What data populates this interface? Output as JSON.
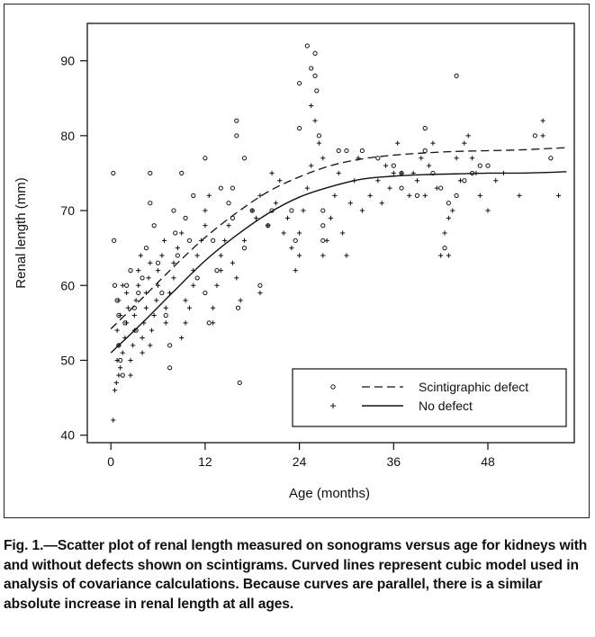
{
  "chart_data": {
    "type": "scatter",
    "title": "",
    "xlabel": "Age (months)",
    "ylabel": "Renal length (mm)",
    "xlim": [
      -3,
      59
    ],
    "ylim": [
      39,
      95
    ],
    "xticks": [
      0,
      12,
      24,
      36,
      48
    ],
    "yticks": [
      40,
      50,
      60,
      70,
      80,
      90
    ],
    "grid": false,
    "legend_position": "bottom-right",
    "series": [
      {
        "name": "Scintigraphic defect",
        "marker": "circle",
        "points": [
          [
            0.3,
            75
          ],
          [
            0.4,
            66
          ],
          [
            0.5,
            60
          ],
          [
            0.8,
            58
          ],
          [
            1,
            56
          ],
          [
            1,
            52
          ],
          [
            1.2,
            50
          ],
          [
            1.5,
            48
          ],
          [
            1.8,
            55
          ],
          [
            2,
            60
          ],
          [
            2.5,
            62
          ],
          [
            3,
            57
          ],
          [
            3.2,
            54
          ],
          [
            3.5,
            59
          ],
          [
            4,
            61
          ],
          [
            4.5,
            65
          ],
          [
            5,
            75
          ],
          [
            5,
            71
          ],
          [
            5.5,
            68
          ],
          [
            6,
            63
          ],
          [
            6.5,
            59
          ],
          [
            7,
            56
          ],
          [
            7.5,
            52
          ],
          [
            7.5,
            49
          ],
          [
            8,
            70
          ],
          [
            8.2,
            67
          ],
          [
            8.5,
            64
          ],
          [
            9,
            75
          ],
          [
            9.5,
            69
          ],
          [
            10,
            66
          ],
          [
            10.5,
            72
          ],
          [
            11,
            61
          ],
          [
            12,
            77
          ],
          [
            12,
            59
          ],
          [
            12.5,
            55
          ],
          [
            13,
            66
          ],
          [
            13.5,
            62
          ],
          [
            14,
            73
          ],
          [
            15,
            71
          ],
          [
            15.5,
            73
          ],
          [
            15.5,
            69
          ],
          [
            16,
            80
          ],
          [
            16,
            82
          ],
          [
            16.2,
            57
          ],
          [
            16.4,
            47
          ],
          [
            17,
            65
          ],
          [
            17,
            77
          ],
          [
            18,
            70
          ],
          [
            19,
            60
          ],
          [
            20,
            68
          ],
          [
            20.5,
            70
          ],
          [
            23,
            70
          ],
          [
            23.5,
            66
          ],
          [
            24,
            81
          ],
          [
            24,
            87
          ],
          [
            25,
            92
          ],
          [
            25.5,
            89
          ],
          [
            26,
            91
          ],
          [
            26,
            88
          ],
          [
            26.2,
            86
          ],
          [
            26.5,
            80
          ],
          [
            27,
            70
          ],
          [
            27,
            68
          ],
          [
            27,
            66
          ],
          [
            29,
            78
          ],
          [
            30,
            78
          ],
          [
            32,
            78
          ],
          [
            34,
            77
          ],
          [
            36,
            76
          ],
          [
            37,
            75
          ],
          [
            37,
            73
          ],
          [
            39,
            72
          ],
          [
            40,
            81
          ],
          [
            40,
            78
          ],
          [
            41,
            75
          ],
          [
            42,
            73
          ],
          [
            42.5,
            65
          ],
          [
            43,
            71
          ],
          [
            44,
            88
          ],
          [
            44,
            72
          ],
          [
            45,
            74
          ],
          [
            46,
            75
          ],
          [
            47,
            76
          ],
          [
            48,
            76
          ],
          [
            54,
            80
          ],
          [
            56,
            77
          ]
        ]
      },
      {
        "name": "No defect",
        "marker": "plus",
        "points": [
          [
            0.3,
            42
          ],
          [
            0.5,
            46
          ],
          [
            0.7,
            47
          ],
          [
            1,
            48
          ],
          [
            0.8,
            50
          ],
          [
            1,
            52
          ],
          [
            0.8,
            54
          ],
          [
            1.2,
            56
          ],
          [
            1,
            58
          ],
          [
            1.5,
            60
          ],
          [
            1.2,
            49
          ],
          [
            1.5,
            51
          ],
          [
            1.8,
            53
          ],
          [
            2,
            55
          ],
          [
            2.2,
            57
          ],
          [
            2,
            59
          ],
          [
            2.5,
            48
          ],
          [
            2.5,
            50
          ],
          [
            2.8,
            52
          ],
          [
            3,
            54
          ],
          [
            3,
            56
          ],
          [
            3.2,
            58
          ],
          [
            3.5,
            60
          ],
          [
            3.5,
            62
          ],
          [
            3.8,
            64
          ],
          [
            4,
            51
          ],
          [
            4,
            53
          ],
          [
            4.2,
            55
          ],
          [
            4.5,
            57
          ],
          [
            4.5,
            59
          ],
          [
            4.8,
            61
          ],
          [
            5,
            63
          ],
          [
            5,
            52
          ],
          [
            5.2,
            54
          ],
          [
            5.5,
            56
          ],
          [
            5.8,
            58
          ],
          [
            6,
            60
          ],
          [
            6,
            62
          ],
          [
            6.5,
            64
          ],
          [
            6.8,
            66
          ],
          [
            7,
            55
          ],
          [
            7,
            57
          ],
          [
            7.5,
            59
          ],
          [
            8,
            61
          ],
          [
            8,
            63
          ],
          [
            8.5,
            65
          ],
          [
            9,
            67
          ],
          [
            9,
            53
          ],
          [
            9.5,
            55
          ],
          [
            9.5,
            58
          ],
          [
            10,
            57
          ],
          [
            10.5,
            60
          ],
          [
            10.5,
            62
          ],
          [
            11,
            64
          ],
          [
            11.5,
            66
          ],
          [
            12,
            68
          ],
          [
            12,
            70
          ],
          [
            12.5,
            72
          ],
          [
            13,
            55
          ],
          [
            13,
            57
          ],
          [
            13.5,
            60
          ],
          [
            14,
            62
          ],
          [
            14,
            64
          ],
          [
            14.5,
            66
          ],
          [
            15,
            68
          ],
          [
            15.5,
            63
          ],
          [
            16,
            61
          ],
          [
            16.5,
            58
          ],
          [
            17,
            66
          ],
          [
            18,
            70
          ],
          [
            18.5,
            69
          ],
          [
            19,
            72
          ],
          [
            19,
            59
          ],
          [
            20,
            68
          ],
          [
            20.5,
            75
          ],
          [
            21,
            71
          ],
          [
            21.5,
            74
          ],
          [
            22,
            67
          ],
          [
            22.5,
            69
          ],
          [
            23,
            65
          ],
          [
            23.5,
            62
          ],
          [
            24,
            64
          ],
          [
            24,
            67
          ],
          [
            24.5,
            70
          ],
          [
            25,
            73
          ],
          [
            25.5,
            76
          ],
          [
            25.5,
            84
          ],
          [
            26,
            82
          ],
          [
            26.5,
            79
          ],
          [
            27,
            77
          ],
          [
            27,
            64
          ],
          [
            27.5,
            66
          ],
          [
            28,
            69
          ],
          [
            28.5,
            72
          ],
          [
            29,
            75
          ],
          [
            29.5,
            67
          ],
          [
            30,
            64
          ],
          [
            30.5,
            71
          ],
          [
            31,
            74
          ],
          [
            31.5,
            77
          ],
          [
            32,
            70
          ],
          [
            33,
            72
          ],
          [
            34,
            74
          ],
          [
            34.5,
            71
          ],
          [
            35,
            76
          ],
          [
            35.5,
            73
          ],
          [
            36,
            75
          ],
          [
            36.5,
            79
          ],
          [
            37,
            75
          ],
          [
            38,
            72
          ],
          [
            38.5,
            75
          ],
          [
            39,
            74
          ],
          [
            39.5,
            77
          ],
          [
            40,
            72
          ],
          [
            40.5,
            76
          ],
          [
            41,
            79
          ],
          [
            41.5,
            73
          ],
          [
            42,
            64
          ],
          [
            42.5,
            67
          ],
          [
            43,
            69
          ],
          [
            43,
            64
          ],
          [
            43.5,
            70
          ],
          [
            44,
            77
          ],
          [
            44.5,
            74
          ],
          [
            45,
            79
          ],
          [
            45.5,
            80
          ],
          [
            46,
            77
          ],
          [
            46.5,
            75
          ],
          [
            47,
            72
          ],
          [
            48,
            70
          ],
          [
            49,
            74
          ],
          [
            50,
            75
          ],
          [
            52,
            72
          ],
          [
            55,
            80
          ],
          [
            55,
            82
          ],
          [
            57,
            72
          ]
        ]
      }
    ],
    "curves": [
      {
        "name": "Scintigraphic defect",
        "style": "dashed",
        "x": [
          0,
          4,
          8,
          12,
          16,
          20,
          24,
          28,
          32,
          36,
          40,
          44,
          48,
          52,
          56,
          58
        ],
        "y": [
          54.2,
          58.3,
          62.5,
          66.4,
          69.7,
          72.5,
          74.5,
          76.0,
          76.9,
          77.4,
          77.7,
          77.9,
          78.0,
          78.1,
          78.3,
          78.4
        ]
      },
      {
        "name": "No defect",
        "style": "solid",
        "x": [
          0,
          4,
          8,
          12,
          16,
          20,
          24,
          28,
          32,
          36,
          40,
          44,
          48,
          52,
          56,
          58
        ],
        "y": [
          51.0,
          55.0,
          59.2,
          63.3,
          66.7,
          69.6,
          71.8,
          73.2,
          74.2,
          74.6,
          74.8,
          74.9,
          75.0,
          75.0,
          75.1,
          75.2
        ]
      }
    ]
  },
  "caption": "Fig. 1.—Scatter plot of renal length measured on sonograms versus age for kidneys with and without defects shown on scintigrams. Curved lines represent cubic model used in analysis of covariance calculations. Because curves are parallel, there is a similar absolute increase in renal length at all ages."
}
